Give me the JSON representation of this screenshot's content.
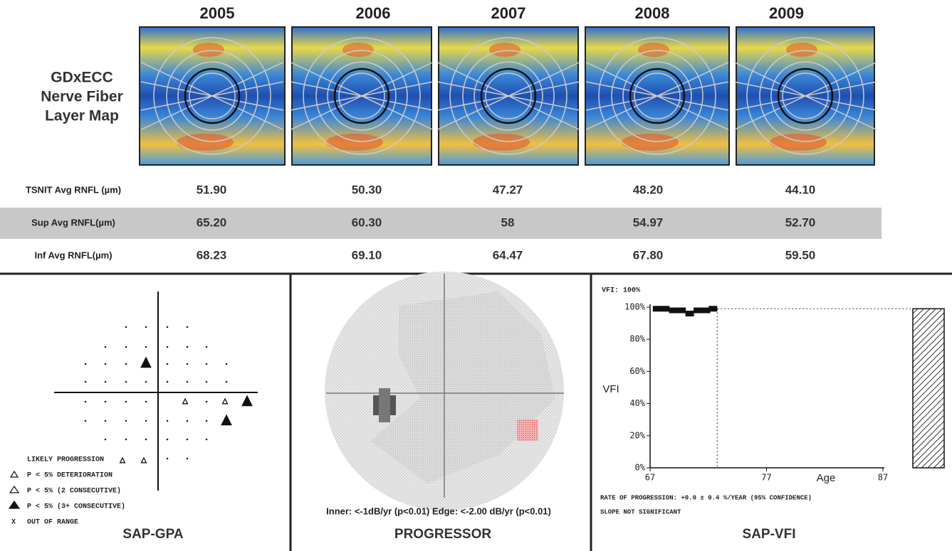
{
  "header": {
    "years": [
      "2005",
      "2006",
      "2007",
      "2008",
      "2009"
    ],
    "row_title": [
      "GDxECC",
      "Nerve Fiber",
      "Layer Map"
    ]
  },
  "table": {
    "rows": [
      {
        "label": "TSNIT Avg RNFL (µm)",
        "values": [
          "51.90",
          "50.30",
          "47.27",
          "48.20",
          "44.10"
        ]
      },
      {
        "label": "Sup Avg RNFL(µm)",
        "values": [
          "65.20",
          "60.30",
          "58",
          "54.97",
          "52.70"
        ]
      },
      {
        "label": "Inf Avg RNFL(µm)",
        "values": [
          "68.23",
          "69.10",
          "64.47",
          "67.80",
          "59.50"
        ]
      }
    ]
  },
  "gpa": {
    "legend": [
      "LIKELY PROGRESSION",
      "P < 5% DETERIORATION",
      "P < 5% (2 CONSECUTIVE)",
      "P < 5% (3+ CONSECUTIVE)",
      "OUT OF RANGE"
    ],
    "out_of_range_symbol": "X",
    "title": "SAP-GPA"
  },
  "progressor": {
    "caption": "Inner: <-1dB/yr (p<0.01)   Edge: <-2.00 dB/yr (p<0.01)",
    "title": "PROGRESSOR"
  },
  "vfi": {
    "header": "VFI: 100%",
    "ylabel": "VFI",
    "xlabel": "Age",
    "ylim": [
      0,
      100
    ],
    "yticks": [
      {
        "value": 0,
        "label": "0%"
      },
      {
        "value": 20,
        "label": "20%"
      },
      {
        "value": 40,
        "label": "40%"
      },
      {
        "value": 60,
        "label": "60%"
      },
      {
        "value": 80,
        "label": "80%"
      },
      {
        "value": 100,
        "label": "100%"
      }
    ],
    "xlim": [
      67,
      87
    ],
    "xticks": [
      67,
      77,
      87
    ],
    "ages": [
      67.6,
      68.3,
      69.0,
      69.7,
      70.4,
      71.1,
      71.8,
      72.4
    ],
    "values": [
      99,
      99,
      98,
      98,
      96,
      98,
      98,
      99
    ],
    "projected": 99,
    "notes": [
      "RATE OF PROGRESSION: +0.0 ± 0.4 %/YEAR (95% CONFIDENCE)",
      "SLOPE NOT SIGNIFICANT"
    ],
    "title": "SAP-VFI"
  }
}
